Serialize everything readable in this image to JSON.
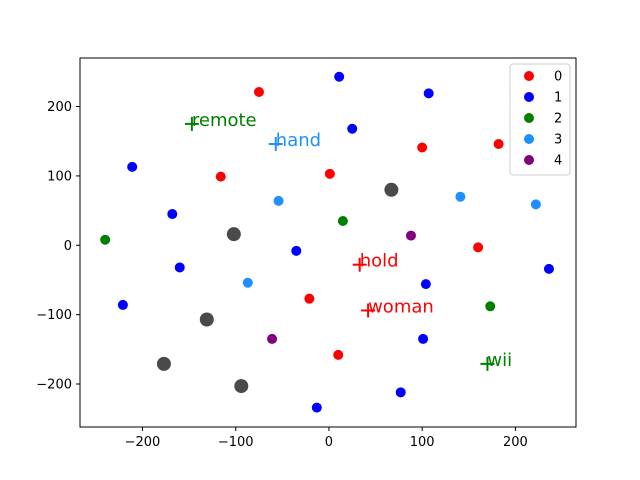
{
  "chart_data": {
    "type": "scatter",
    "xlim": [
      -267,
      265
    ],
    "ylim": [
      -262,
      270
    ],
    "xticks": [
      -200,
      -100,
      0,
      100,
      200
    ],
    "yticks": [
      -200,
      -100,
      0,
      100,
      200
    ],
    "legend_placement": "top-right",
    "grid": false,
    "series": [
      {
        "name": "0",
        "color": "#ff0000",
        "points": [
          [
            -75,
            221
          ],
          [
            -116,
            99
          ],
          [
            1,
            103
          ],
          [
            100,
            141
          ],
          [
            182,
            146
          ],
          [
            160,
            -3
          ],
          [
            -21,
            -77
          ],
          [
            10,
            -158
          ]
        ]
      },
      {
        "name": "1",
        "color": "#0000ff",
        "points": [
          [
            11,
            243
          ],
          [
            107,
            219
          ],
          [
            25,
            168
          ],
          [
            -211,
            113
          ],
          [
            -168,
            45
          ],
          [
            -35,
            -8
          ],
          [
            -160,
            -32
          ],
          [
            236,
            -34
          ],
          [
            104,
            -56
          ],
          [
            -221,
            -86
          ],
          [
            101,
            -135
          ],
          [
            77,
            -212
          ],
          [
            -13,
            -234
          ]
        ]
      },
      {
        "name": "2",
        "color": "#008000",
        "points": [
          [
            -240,
            8
          ],
          [
            15,
            35
          ],
          [
            173,
            -88
          ]
        ]
      },
      {
        "name": "3",
        "color": "#1e90ff",
        "points": [
          [
            -54,
            64
          ],
          [
            141,
            70
          ],
          [
            222,
            59
          ],
          [
            -87,
            -54
          ]
        ]
      },
      {
        "name": "4",
        "color": "#800080",
        "points": [
          [
            88,
            14
          ],
          [
            -61,
            -135
          ]
        ]
      }
    ],
    "gray_points": {
      "color": "#404040",
      "points": [
        [
          67,
          80
        ],
        [
          -102,
          16
        ],
        [
          -131,
          -107
        ],
        [
          -177,
          -171
        ],
        [
          -94,
          -203
        ]
      ]
    },
    "word_markers": [
      {
        "word": "remote",
        "color": "#008000",
        "x": -147,
        "y": 175
      },
      {
        "word": "hand",
        "color": "#1e90ff",
        "x": -57,
        "y": 146
      },
      {
        "word": "hold",
        "color": "#ff0000",
        "x": 33,
        "y": -28
      },
      {
        "word": "woman",
        "color": "#ff0000",
        "x": 42,
        "y": -94
      },
      {
        "word": "wii",
        "color": "#008000",
        "x": 170,
        "y": -171
      }
    ]
  }
}
